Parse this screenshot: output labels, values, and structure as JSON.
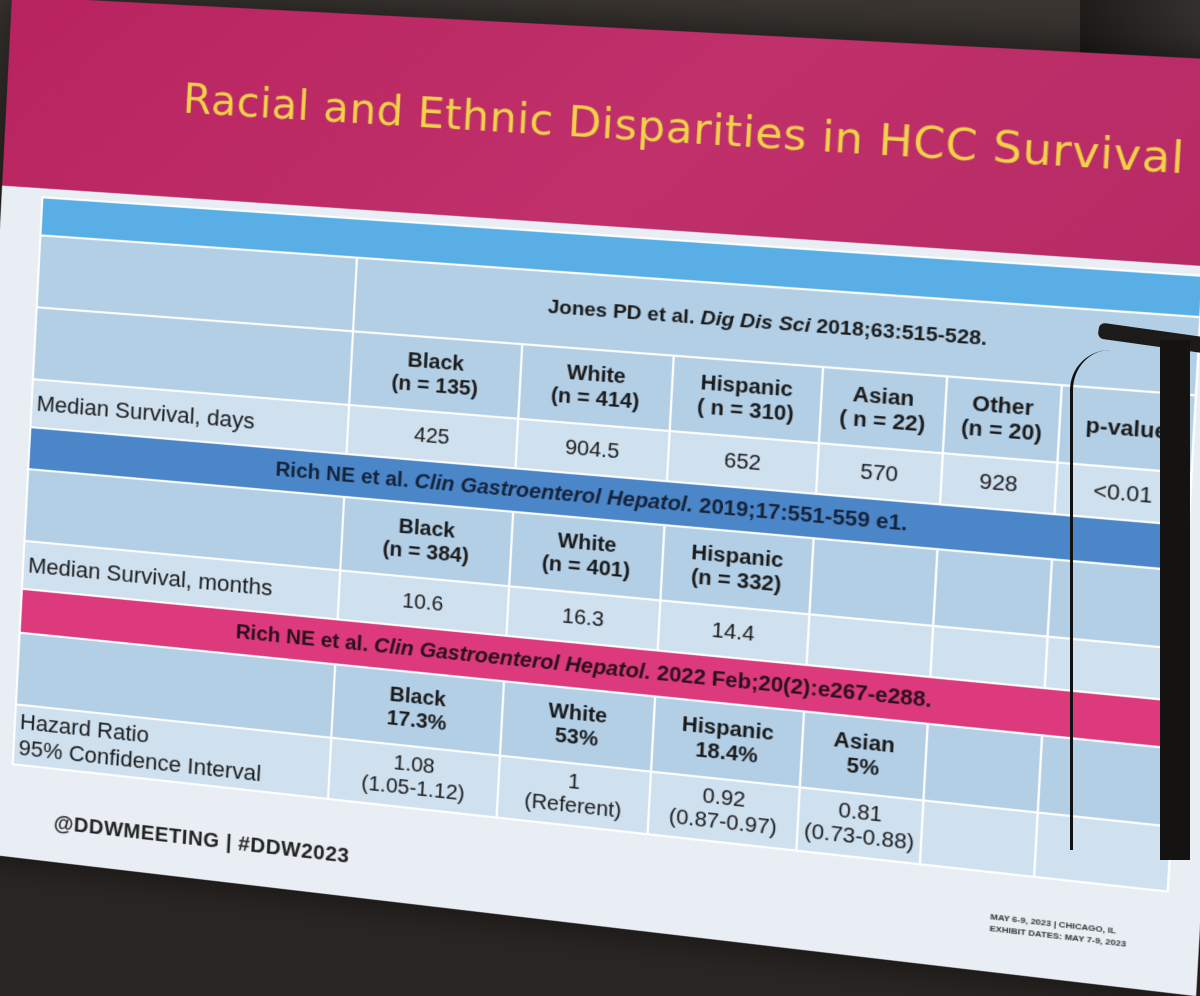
{
  "title": "Racial and Ethnic Disparities in HCC Survival",
  "footer": {
    "handle": "@DDWMEETING | #DDW2023",
    "dates": "MAY 6-9, 2023 | CHICAGO, IL",
    "exhibit": "EXHIBIT DATES: MAY 7-9, 2023"
  },
  "study1": {
    "ref_authors": "Jones PD et al. ",
    "ref_journal": "Dig Dis Sci",
    "ref_details": " 2018;63:515-528.",
    "headers": [
      {
        "group": "Black",
        "n": "(n = 135)"
      },
      {
        "group": "White",
        "n": "(n = 414)"
      },
      {
        "group": "Hispanic",
        "n": "( n = 310)"
      },
      {
        "group": "Asian",
        "n": "( n = 22)"
      },
      {
        "group": "Other",
        "n": "(n = 20)"
      }
    ],
    "pvalue_label": "p-value",
    "row_label": "Median Survival, days",
    "values": [
      "425",
      "904.5",
      "652",
      "570",
      "928"
    ],
    "pvalue": "<0.01"
  },
  "study2": {
    "ref_authors": "Rich NE et al. ",
    "ref_journal": "Clin Gastroenterol Hepatol.",
    "ref_details": " 2019;17:551-559 e1.",
    "headers": [
      {
        "group": "Black",
        "n": "(n = 384)"
      },
      {
        "group": "White",
        "n": "(n = 401)"
      },
      {
        "group": "Hispanic",
        "n": "(n = 332)"
      }
    ],
    "row_label": "Median Survival, months",
    "values": [
      "10.6",
      "16.3",
      "14.4"
    ]
  },
  "study3": {
    "ref_authors": "Rich NE et al. ",
    "ref_journal": "Clin Gastroenterol Hepatol.",
    "ref_details": " 2022 Feb;20(2):e267-e288.",
    "headers": [
      {
        "group": "Black",
        "pct": "17.3%"
      },
      {
        "group": "White",
        "pct": "53%"
      },
      {
        "group": "Hispanic",
        "pct": "18.4%"
      },
      {
        "group": "Asian",
        "pct": "5%"
      }
    ],
    "row_label_1": "Hazard Ratio",
    "row_label_2": "95% Confidence Interval",
    "values": [
      {
        "hr": "1.08",
        "ci": "(1.05-1.12)"
      },
      {
        "hr": "1",
        "ci": "(Referent)"
      },
      {
        "hr": "0.92",
        "ci": "(0.87-0.97)"
      },
      {
        "hr": "0.81",
        "ci": "(0.73-0.88)"
      }
    ]
  }
}
